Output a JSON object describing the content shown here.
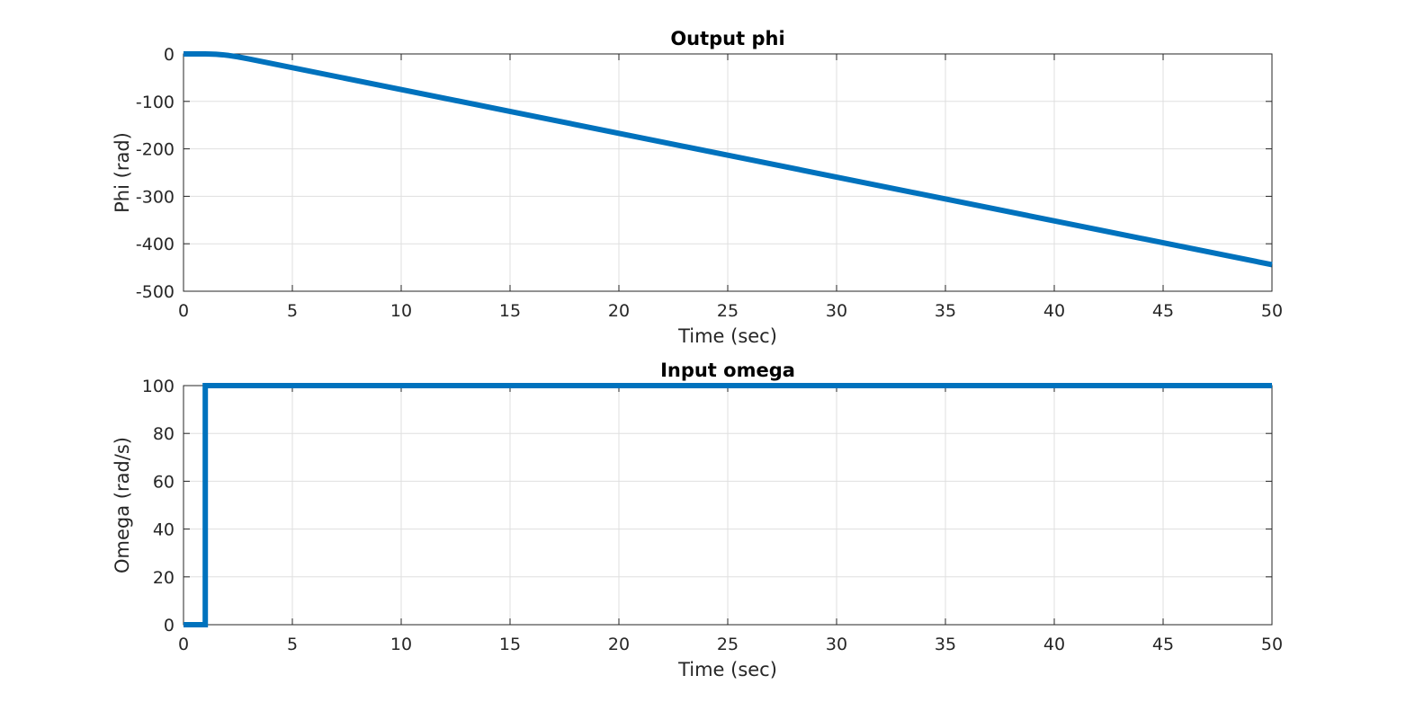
{
  "colors": {
    "series": "#0072BD",
    "grid": "#DFDFDF",
    "axis": "#262626",
    "background": "#FFFFFF"
  },
  "chart_data": [
    {
      "type": "line",
      "title": "Output phi",
      "xlabel": "Time (sec)",
      "ylabel": "Phi (rad)",
      "xlim": [
        0,
        50
      ],
      "ylim": [
        -500,
        0
      ],
      "xticks": [
        0,
        5,
        10,
        15,
        20,
        25,
        30,
        35,
        40,
        45,
        50
      ],
      "yticks": [
        0,
        -100,
        -200,
        -300,
        -400,
        -500
      ],
      "grid": true,
      "series": [
        {
          "name": "phi",
          "x": [
            0,
            1,
            1.2,
            1.5,
            1.8,
            2.1,
            2.5,
            3,
            50
          ],
          "y": [
            0,
            0,
            -0.2,
            -0.8,
            -1.8,
            -3.4,
            -6.2,
            -10.5,
            -444
          ]
        }
      ]
    },
    {
      "type": "line",
      "title": "Input omega",
      "xlabel": "Time (sec)",
      "ylabel": "Omega (rad/s)",
      "xlim": [
        0,
        50
      ],
      "ylim": [
        0,
        100
      ],
      "xticks": [
        0,
        5,
        10,
        15,
        20,
        25,
        30,
        35,
        40,
        45,
        50
      ],
      "yticks": [
        0,
        20,
        40,
        60,
        80,
        100
      ],
      "grid": true,
      "series": [
        {
          "name": "omega",
          "x": [
            0,
            1,
            1,
            50
          ],
          "y": [
            0,
            0,
            100,
            100
          ]
        }
      ]
    }
  ]
}
